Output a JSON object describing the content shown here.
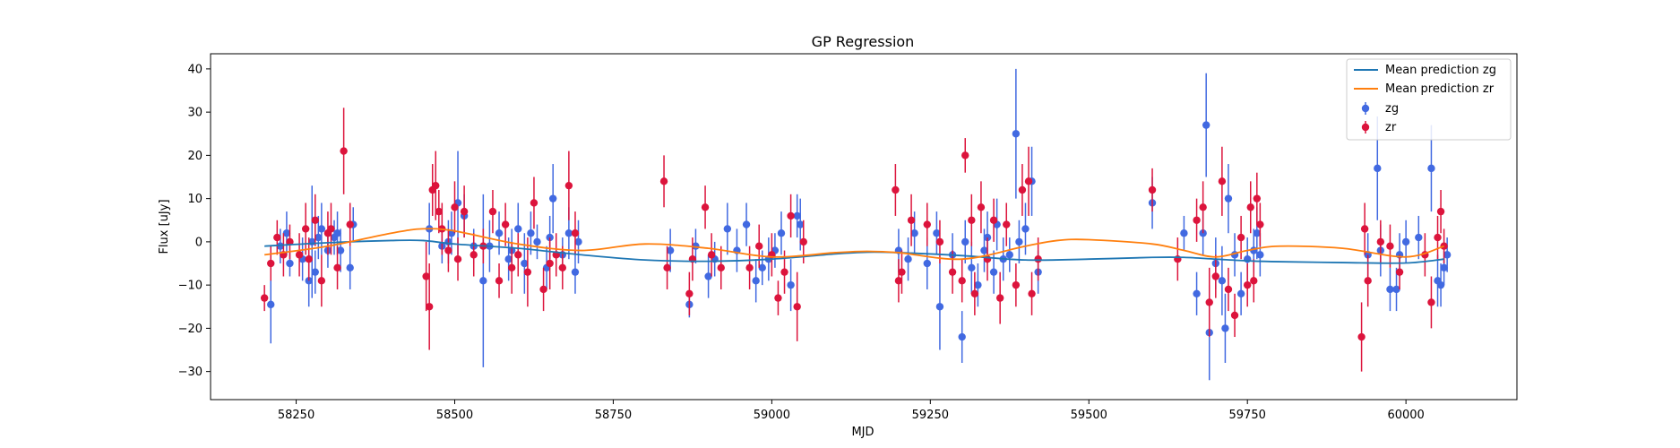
{
  "chart_data": {
    "type": "scatter",
    "title": "GP Regression",
    "xlabel": "MJD",
    "ylabel": "Flux [uJy]",
    "xlim": [
      58115,
      60175
    ],
    "ylim": [
      -36.5,
      43.5
    ],
    "xticks": [
      58250,
      58500,
      58750,
      59000,
      59250,
      59500,
      59750,
      60000
    ],
    "yticks": [
      -30,
      -20,
      -10,
      0,
      10,
      20,
      30,
      40
    ],
    "grid": false,
    "legend_position": "top-right",
    "colors": {
      "mean_zg": "#1f77b4",
      "mean_zr": "#ff7f0e",
      "zg": "#4169e1",
      "zr": "#dc143c"
    },
    "lines": [
      {
        "name": "Mean prediction zg",
        "color": "#1f77b4",
        "x": [
          58200,
          58300,
          58400,
          58450,
          58500,
          58600,
          58700,
          58800,
          58900,
          59000,
          59100,
          59150,
          59200,
          59300,
          59400,
          59500,
          59600,
          59650,
          59700,
          59750,
          59800,
          59900,
          60000,
          60060
        ],
        "y": [
          -1.0,
          -0.2,
          0.3,
          0.3,
          -0.5,
          -1.5,
          -3.0,
          -4.2,
          -4.5,
          -4.0,
          -2.8,
          -2.4,
          -2.5,
          -3.2,
          -4.2,
          -4.0,
          -3.6,
          -3.6,
          -4.0,
          -4.4,
          -4.6,
          -4.8,
          -4.9,
          -4.0
        ]
      },
      {
        "name": "Mean prediction zr",
        "color": "#ff7f0e",
        "x": [
          58200,
          58300,
          58400,
          58450,
          58500,
          58600,
          58700,
          58800,
          58900,
          59000,
          59100,
          59150,
          59200,
          59300,
          59400,
          59450,
          59500,
          59600,
          59650,
          59700,
          59750,
          59800,
          59900,
          60000,
          60060
        ],
        "y": [
          -3.0,
          -1.0,
          2.0,
          3.0,
          2.5,
          -0.5,
          -2.0,
          -0.5,
          -1.5,
          -3.5,
          -2.5,
          -2.2,
          -2.5,
          -4.0,
          -1.0,
          0.3,
          0.5,
          -0.5,
          -2.0,
          -3.5,
          -2.0,
          -1.0,
          -1.5,
          -3.5,
          -1.0
        ]
      }
    ],
    "series": [
      {
        "name": "zg",
        "color": "#4169e1",
        "points": [
          [
            58210,
            -14.5,
            9
          ],
          [
            58225,
            -1,
            4
          ],
          [
            58235,
            2,
            5
          ],
          [
            58240,
            -5,
            3
          ],
          [
            58260,
            -4,
            5
          ],
          [
            58270,
            -9,
            6
          ],
          [
            58275,
            0,
            13
          ],
          [
            58280,
            -7,
            5
          ],
          [
            58285,
            1,
            5
          ],
          [
            58290,
            3,
            6
          ],
          [
            58300,
            -2,
            4
          ],
          [
            58310,
            1,
            4
          ],
          [
            58315,
            2,
            5
          ],
          [
            58320,
            -2,
            5
          ],
          [
            58335,
            -6,
            5
          ],
          [
            58340,
            4,
            4
          ],
          [
            58460,
            3,
            6
          ],
          [
            58480,
            -1,
            4
          ],
          [
            58490,
            0,
            5
          ],
          [
            58495,
            2,
            5
          ],
          [
            58505,
            9,
            12
          ],
          [
            58515,
            6,
            5
          ],
          [
            58530,
            -1,
            4
          ],
          [
            58545,
            -9,
            20
          ],
          [
            58555,
            -1,
            6
          ],
          [
            58570,
            2,
            5
          ],
          [
            58585,
            -4,
            5
          ],
          [
            58590,
            -2,
            5
          ],
          [
            58600,
            3,
            6
          ],
          [
            58610,
            -5,
            7
          ],
          [
            58620,
            2,
            5
          ],
          [
            58630,
            0,
            4
          ],
          [
            58645,
            -6,
            5
          ],
          [
            58650,
            1,
            5
          ],
          [
            58655,
            10,
            8
          ],
          [
            58670,
            -3,
            4
          ],
          [
            58680,
            2,
            6
          ],
          [
            58690,
            -7,
            5
          ],
          [
            58695,
            0,
            5
          ],
          [
            58840,
            -2,
            5
          ],
          [
            58870,
            -14.5,
            3
          ],
          [
            58880,
            -1,
            4
          ],
          [
            58900,
            -8,
            5
          ],
          [
            58910,
            -4,
            4
          ],
          [
            58930,
            3,
            6
          ],
          [
            58945,
            -2,
            5
          ],
          [
            58960,
            4,
            5
          ],
          [
            58975,
            -9,
            5
          ],
          [
            58985,
            -6,
            4
          ],
          [
            58995,
            -4,
            5
          ],
          [
            59005,
            -2,
            4
          ],
          [
            59015,
            2,
            5
          ],
          [
            59030,
            -10,
            6
          ],
          [
            59040,
            6,
            5
          ],
          [
            59045,
            4,
            6
          ],
          [
            59200,
            -2,
            5
          ],
          [
            59215,
            -4,
            5
          ],
          [
            59225,
            2,
            5
          ],
          [
            59245,
            -5,
            6
          ],
          [
            59260,
            2,
            5
          ],
          [
            59265,
            -15,
            10
          ],
          [
            59285,
            -3,
            5
          ],
          [
            59300,
            -22,
            6
          ],
          [
            59305,
            0,
            5
          ],
          [
            59315,
            -6,
            6
          ],
          [
            59325,
            -10,
            5
          ],
          [
            59335,
            -2,
            5
          ],
          [
            59340,
            1,
            6
          ],
          [
            59350,
            -7,
            5
          ],
          [
            59355,
            4,
            6
          ],
          [
            59365,
            -4,
            5
          ],
          [
            59375,
            -3,
            4
          ],
          [
            59385,
            25,
            15
          ],
          [
            59390,
            0,
            5
          ],
          [
            59400,
            3,
            6
          ],
          [
            59410,
            14,
            8
          ],
          [
            59420,
            -7,
            5
          ],
          [
            59600,
            9,
            6
          ],
          [
            59650,
            2,
            4
          ],
          [
            59670,
            -12,
            5
          ],
          [
            59680,
            2,
            5
          ],
          [
            59685,
            27,
            12
          ],
          [
            59690,
            -21,
            11
          ],
          [
            59700,
            -5,
            6
          ],
          [
            59710,
            -9,
            8
          ],
          [
            59715,
            -20,
            8
          ],
          [
            59720,
            10,
            8
          ],
          [
            59730,
            -3,
            5
          ],
          [
            59740,
            -12,
            5
          ],
          [
            59750,
            -4,
            5
          ],
          [
            59760,
            -2,
            5
          ],
          [
            59765,
            2,
            6
          ],
          [
            59770,
            -3,
            5
          ],
          [
            59940,
            -3,
            5
          ],
          [
            59955,
            17,
            12
          ],
          [
            59960,
            -2,
            6
          ],
          [
            59975,
            -11,
            5
          ],
          [
            59985,
            -11,
            5
          ],
          [
            59990,
            -3,
            5
          ],
          [
            60000,
            0,
            5
          ],
          [
            60020,
            1,
            5
          ],
          [
            60040,
            17,
            10
          ],
          [
            60050,
            -9,
            6
          ],
          [
            60055,
            -10,
            5
          ],
          [
            60060,
            -6,
            4
          ],
          [
            60065,
            -3,
            4
          ]
        ]
      },
      {
        "name": "zr",
        "color": "#dc143c",
        "points": [
          [
            58200,
            -13,
            3
          ],
          [
            58210,
            -5,
            4
          ],
          [
            58220,
            1,
            4
          ],
          [
            58230,
            -3,
            5
          ],
          [
            58240,
            0,
            4
          ],
          [
            58255,
            -3,
            5
          ],
          [
            58265,
            3,
            6
          ],
          [
            58270,
            -4,
            5
          ],
          [
            58280,
            5,
            6
          ],
          [
            58290,
            -9,
            6
          ],
          [
            58300,
            2,
            5
          ],
          [
            58305,
            3,
            6
          ],
          [
            58315,
            -6,
            5
          ],
          [
            58325,
            21,
            10
          ],
          [
            58335,
            4,
            5
          ],
          [
            58455,
            -8,
            8
          ],
          [
            58460,
            -15,
            10
          ],
          [
            58465,
            12,
            6
          ],
          [
            58470,
            13,
            8
          ],
          [
            58475,
            7,
            5
          ],
          [
            58480,
            3,
            6
          ],
          [
            58490,
            -2,
            5
          ],
          [
            58500,
            8,
            6
          ],
          [
            58505,
            -4,
            5
          ],
          [
            58515,
            7,
            6
          ],
          [
            58530,
            -3,
            5
          ],
          [
            58545,
            -1,
            4
          ],
          [
            58560,
            7,
            5
          ],
          [
            58570,
            -9,
            4
          ],
          [
            58580,
            4,
            5
          ],
          [
            58590,
            -6,
            6
          ],
          [
            58600,
            -3,
            5
          ],
          [
            58615,
            -7,
            8
          ],
          [
            58625,
            9,
            6
          ],
          [
            58640,
            -11,
            5
          ],
          [
            58650,
            -5,
            6
          ],
          [
            58660,
            -3,
            5
          ],
          [
            58670,
            -6,
            5
          ],
          [
            58680,
            13,
            8
          ],
          [
            58690,
            2,
            5
          ],
          [
            58830,
            14,
            6
          ],
          [
            58835,
            -6,
            5
          ],
          [
            58870,
            -12,
            5
          ],
          [
            58875,
            -4,
            5
          ],
          [
            58895,
            8,
            5
          ],
          [
            58905,
            -3,
            5
          ],
          [
            58920,
            -6,
            5
          ],
          [
            58965,
            -6,
            5
          ],
          [
            58980,
            -1,
            5
          ],
          [
            59000,
            -3,
            5
          ],
          [
            59010,
            -13,
            4
          ],
          [
            59020,
            -7,
            5
          ],
          [
            59030,
            6,
            5
          ],
          [
            59040,
            -15,
            8
          ],
          [
            59050,
            0,
            5
          ],
          [
            59195,
            12,
            6
          ],
          [
            59200,
            -9,
            5
          ],
          [
            59205,
            -7,
            5
          ],
          [
            59220,
            5,
            6
          ],
          [
            59245,
            4,
            5
          ],
          [
            59265,
            0,
            5
          ],
          [
            59285,
            -7,
            5
          ],
          [
            59300,
            -9,
            5
          ],
          [
            59305,
            20,
            4
          ],
          [
            59315,
            5,
            6
          ],
          [
            59320,
            -12,
            5
          ],
          [
            59330,
            8,
            6
          ],
          [
            59340,
            -4,
            5
          ],
          [
            59350,
            5,
            5
          ],
          [
            59360,
            -13,
            6
          ],
          [
            59370,
            4,
            5
          ],
          [
            59385,
            -10,
            5
          ],
          [
            59395,
            12,
            6
          ],
          [
            59405,
            14,
            8
          ],
          [
            59410,
            -12,
            5
          ],
          [
            59420,
            -4,
            5
          ],
          [
            59600,
            12,
            5
          ],
          [
            59640,
            -4,
            5
          ],
          [
            59670,
            5,
            5
          ],
          [
            59680,
            8,
            6
          ],
          [
            59690,
            -14,
            8
          ],
          [
            59700,
            -8,
            5
          ],
          [
            59710,
            14,
            8
          ],
          [
            59720,
            -11,
            5
          ],
          [
            59730,
            -17,
            5
          ],
          [
            59740,
            1,
            5
          ],
          [
            59750,
            -10,
            5
          ],
          [
            59755,
            8,
            6
          ],
          [
            59760,
            -9,
            5
          ],
          [
            59765,
            10,
            6
          ],
          [
            59770,
            4,
            5
          ],
          [
            59930,
            -22,
            8
          ],
          [
            59935,
            3,
            6
          ],
          [
            59940,
            -9,
            6
          ],
          [
            59960,
            0,
            5
          ],
          [
            59975,
            -1,
            5
          ],
          [
            59990,
            -7,
            4
          ],
          [
            60030,
            -3,
            5
          ],
          [
            60040,
            -14,
            6
          ],
          [
            60050,
            1,
            5
          ],
          [
            60055,
            7,
            5
          ],
          [
            60060,
            -1,
            4
          ]
        ]
      }
    ],
    "legend": [
      {
        "label": "Mean prediction zg",
        "kind": "line",
        "color": "#1f77b4"
      },
      {
        "label": "Mean prediction zr",
        "kind": "line",
        "color": "#ff7f0e"
      },
      {
        "label": "zg",
        "kind": "errorbar",
        "color": "#4169e1"
      },
      {
        "label": "zr",
        "kind": "errorbar",
        "color": "#dc143c"
      }
    ]
  }
}
